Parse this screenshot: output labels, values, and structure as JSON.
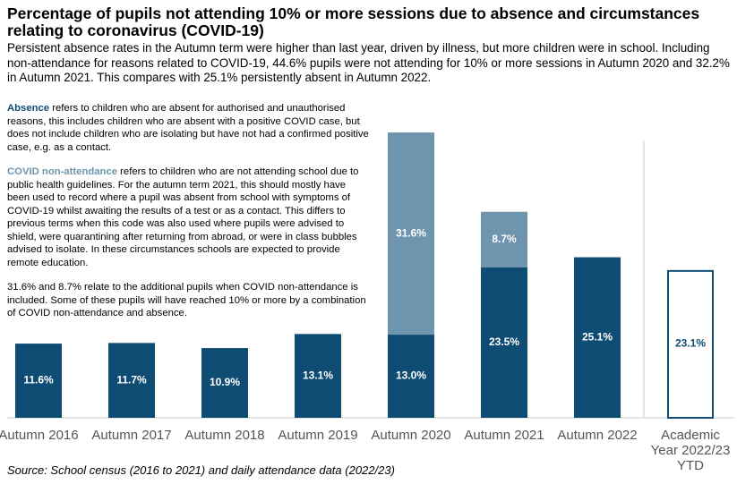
{
  "chart_data": {
    "type": "stacked-bar",
    "title": "Percentage of pupils not attending 10% or more sessions due to absence and circumstances relating to coronavirus (COVID-19)",
    "subtitle": "Persistent absence rates in the Autumn term were higher than last year, driven by illness, but more children were in school. Including non-attendance for reasons related to COVID-19, 44.6% pupils were not attending for 10% or more sessions in Autumn 2020 and 32.2% in Autumn 2021. This compares with 25.1% persistently absent in Autumn 2022.",
    "notes": [
      " refers to children who are absent for authorised and unauthorised reasons, this includes children who are absent with a positive COVID case, but does not include children who are isolating but have not had a confirmed positive case, e.g. as a contact.",
      " refers to children who are not attending school due to public health guidelines. For the autumn term 2021, this should mostly have been used to record where a pupil was absent from school with symptoms of COVID-19 whilst awaiting the results of a test or as a contact. This differs to previous terms when this code was also used where pupils were advised to shield, were quarantining after returning from abroad, or were in class bubbles advised to isolate. In these circumstances schools are expected to provide remote education.",
      "31.6% and 8.7% relate to the additional pupils when COVID non-attendance is included. Some of these pupils will have reached 10% or more by a combination of COVID non-attendance and absence."
    ],
    "source": "Source: School census (2016 to 2021) and daily attendance data (2022/23)",
    "categories": [
      "Autumn 2016",
      "Autumn 2017",
      "Autumn 2018",
      "Autumn 2019",
      "Autumn 2020",
      "Autumn 2021",
      "Autumn 2022",
      "Academic Year 2022/23 YTD"
    ],
    "outlined": [
      false,
      false,
      false,
      false,
      false,
      false,
      false,
      true
    ],
    "series": [
      {
        "name": "Absence",
        "color": "#0f4c73",
        "values": [
          11.6,
          11.7,
          10.9,
          13.1,
          13.0,
          23.5,
          25.1,
          23.1
        ],
        "value_labels": [
          "11.6%",
          "11.7%",
          "10.9%",
          "13.1%",
          "13.0%",
          "23.5%",
          "25.1%",
          "23.1%"
        ]
      },
      {
        "name": "COVID non-attendance",
        "color": "#6e94ae",
        "values": [
          null,
          null,
          null,
          null,
          31.6,
          8.7,
          null,
          null
        ],
        "value_labels": [
          null,
          null,
          null,
          null,
          "31.6%",
          "8.7%",
          null,
          null
        ]
      }
    ]
  }
}
